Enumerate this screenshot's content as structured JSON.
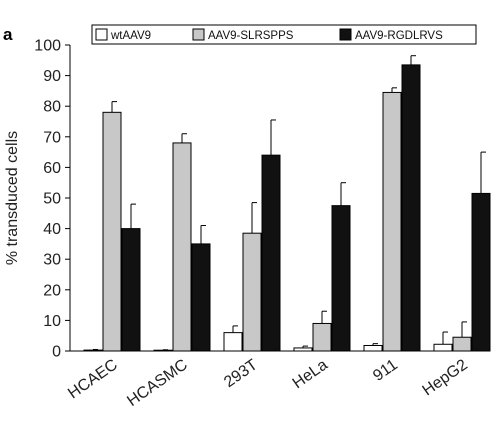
{
  "panel_label": "a",
  "colors": {
    "wtAAV9": "#ffffff",
    "AAV9-SLRSPPS": "#c8c8c8",
    "AAV9-RGDLRVS": "#111111",
    "bar_stroke": "#000000",
    "axis": "#000000"
  },
  "chart_data": {
    "type": "bar",
    "title": "",
    "xlabel": "",
    "ylabel": "% transduced cells",
    "ylim": [
      0,
      100
    ],
    "yticks": [
      0,
      10,
      20,
      30,
      40,
      50,
      60,
      70,
      80,
      90,
      100
    ],
    "grid": false,
    "legend_position": "top",
    "categories": [
      "HCAEC",
      "HCASMC",
      "293T",
      "HeLa",
      "911",
      "HepG2"
    ],
    "series": [
      {
        "name": "wtAAV9",
        "values": [
          0.3,
          0.2,
          6,
          1,
          1.8,
          2.2
        ],
        "errors": [
          0.2,
          0.2,
          2.2,
          0.6,
          0.6,
          4
        ]
      },
      {
        "name": "AAV9-SLRSPPS",
        "values": [
          78,
          68,
          38.5,
          9,
          84.5,
          4.5
        ],
        "errors": [
          3.5,
          3,
          10,
          4,
          1.5,
          5
        ]
      },
      {
        "name": "AAV9-RGDLRVS",
        "values": [
          40,
          35,
          64,
          47.5,
          93.5,
          51.5
        ],
        "errors": [
          8,
          6,
          11.5,
          7.5,
          3,
          13.5
        ]
      }
    ]
  }
}
